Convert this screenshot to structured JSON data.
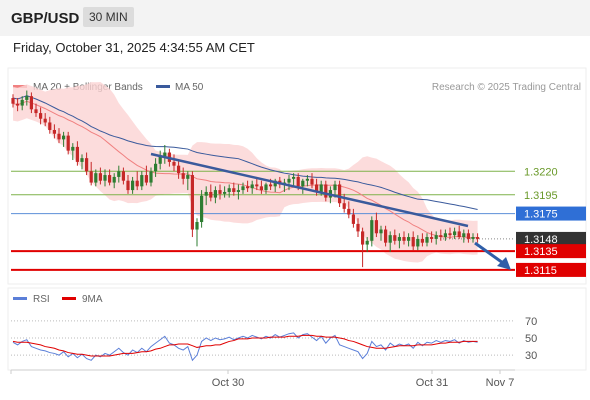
{
  "header": {
    "symbol": "GBP/USD",
    "timeframe": "30 MIN"
  },
  "datetime": "Friday, October 31, 2025 4:34:55 AM CET",
  "legend": {
    "ma20": "MA 20 + Bollinger Bands",
    "ma50": "MA 50",
    "rsi": "RSI",
    "ma9": "9MA"
  },
  "credit": "Research © 2025 Trading Central",
  "colors": {
    "ma20": "#f08080",
    "bands": "#fbd3d3",
    "ma50": "#3a5a9c",
    "trendline": "#3a5a9c",
    "support_line": "#e00000",
    "resistance_line": "#7fb24a",
    "pivot_line": "#5b8fd8",
    "candle_up": "#2e7d32",
    "candle_down": "#c62828",
    "rsi": "#5b7fd8",
    "rsi_ma": "#e00000"
  },
  "chart_data": [
    {
      "type": "candlestick",
      "title": "GBP/USD 30 MIN",
      "x_ticks": [
        "Oct 30",
        "Oct 31",
        "Nov 7"
      ],
      "y_range": [
        1.31,
        1.333
      ],
      "levels": [
        {
          "value": 1.322,
          "label": "1.3220",
          "style": "resistance"
        },
        {
          "value": 1.3195,
          "label": "1.3195",
          "style": "resistance"
        },
        {
          "value": 1.3175,
          "label": "1.3175",
          "style": "pivot"
        },
        {
          "value": 1.3148,
          "label": "1.3148",
          "style": "current"
        },
        {
          "value": 1.3135,
          "label": "1.3135",
          "style": "support"
        },
        {
          "value": 1.3115,
          "label": "1.3115",
          "style": "support"
        }
      ],
      "current_price": 1.3148,
      "candles": [
        [
          1.3298,
          1.3302,
          1.3288,
          1.3292
        ],
        [
          1.3292,
          1.3298,
          1.3284,
          1.329
        ],
        [
          1.329,
          1.33,
          1.3285,
          1.3296
        ],
        [
          1.3296,
          1.3306,
          1.329,
          1.33
        ],
        [
          1.33,
          1.3304,
          1.3282,
          1.3286
        ],
        [
          1.3286,
          1.3292,
          1.3278,
          1.3282
        ],
        [
          1.3282,
          1.3288,
          1.327,
          1.3276
        ],
        [
          1.3276,
          1.3282,
          1.3268,
          1.3272
        ],
        [
          1.3272,
          1.3278,
          1.326,
          1.3264
        ],
        [
          1.3264,
          1.327,
          1.3255,
          1.326
        ],
        [
          1.326,
          1.3266,
          1.325,
          1.3254
        ],
        [
          1.3254,
          1.3262,
          1.3246,
          1.3258
        ],
        [
          1.3258,
          1.3262,
          1.3238,
          1.3242
        ],
        [
          1.3242,
          1.325,
          1.3232,
          1.3246
        ],
        [
          1.3246,
          1.3252,
          1.3226,
          1.323
        ],
        [
          1.323,
          1.3238,
          1.3222,
          1.3234
        ],
        [
          1.3234,
          1.324,
          1.3216,
          1.322
        ],
        [
          1.322,
          1.323,
          1.3205,
          1.3208
        ],
        [
          1.3208,
          1.3222,
          1.3204,
          1.3218
        ],
        [
          1.3218,
          1.3224,
          1.3206,
          1.321
        ],
        [
          1.321,
          1.3222,
          1.3204,
          1.3216
        ],
        [
          1.3216,
          1.3222,
          1.3205,
          1.3208
        ],
        [
          1.3208,
          1.3218,
          1.3202,
          1.3214
        ],
        [
          1.3214,
          1.3226,
          1.3208,
          1.322
        ],
        [
          1.322,
          1.3224,
          1.3206,
          1.321
        ],
        [
          1.321,
          1.3216,
          1.3196,
          1.32
        ],
        [
          1.32,
          1.3214,
          1.3196,
          1.321
        ],
        [
          1.321,
          1.322,
          1.32,
          1.3204
        ],
        [
          1.3204,
          1.322,
          1.32,
          1.3216
        ],
        [
          1.3216,
          1.3226,
          1.3205,
          1.3208
        ],
        [
          1.3208,
          1.3224,
          1.3204,
          1.322
        ],
        [
          1.322,
          1.3234,
          1.3214,
          1.3228
        ],
        [
          1.3228,
          1.3242,
          1.3222,
          1.3236
        ],
        [
          1.3236,
          1.3248,
          1.3228,
          1.324
        ],
        [
          1.324,
          1.3244,
          1.3225,
          1.323
        ],
        [
          1.323,
          1.3238,
          1.322,
          1.3226
        ],
        [
          1.3226,
          1.3232,
          1.3212,
          1.3218
        ],
        [
          1.3218,
          1.3224,
          1.3206,
          1.3212
        ],
        [
          1.3212,
          1.322,
          1.32,
          1.3216
        ],
        [
          1.3216,
          1.322,
          1.315,
          1.3158
        ],
        [
          1.3158,
          1.317,
          1.314,
          1.3166
        ],
        [
          1.3166,
          1.32,
          1.316,
          1.3194
        ],
        [
          1.3194,
          1.3204,
          1.3184,
          1.3198
        ],
        [
          1.3198,
          1.3206,
          1.3188,
          1.3192
        ],
        [
          1.3192,
          1.3204,
          1.3186,
          1.32
        ],
        [
          1.32,
          1.3206,
          1.319,
          1.3196
        ],
        [
          1.3196,
          1.3204,
          1.3192,
          1.3198
        ],
        [
          1.3198,
          1.3206,
          1.3192,
          1.3202
        ],
        [
          1.3202,
          1.3208,
          1.3194,
          1.3198
        ],
        [
          1.3198,
          1.3206,
          1.319,
          1.32
        ],
        [
          1.32,
          1.3208,
          1.3196,
          1.3204
        ],
        [
          1.3204,
          1.321,
          1.3198,
          1.3202
        ],
        [
          1.3202,
          1.321,
          1.3196,
          1.3206
        ],
        [
          1.3206,
          1.3212,
          1.32,
          1.3204
        ],
        [
          1.3204,
          1.321,
          1.3196,
          1.32
        ],
        [
          1.32,
          1.3208,
          1.3196,
          1.3206
        ],
        [
          1.3206,
          1.3212,
          1.32,
          1.3204
        ],
        [
          1.3204,
          1.3212,
          1.3198,
          1.321
        ],
        [
          1.321,
          1.3214,
          1.3202,
          1.3206
        ],
        [
          1.3206,
          1.3212,
          1.3198,
          1.3208
        ],
        [
          1.3208,
          1.3216,
          1.32,
          1.3212
        ],
        [
          1.3212,
          1.3218,
          1.3204,
          1.3214
        ],
        [
          1.3214,
          1.3218,
          1.32,
          1.3204
        ],
        [
          1.3204,
          1.3212,
          1.3196,
          1.321
        ],
        [
          1.321,
          1.3216,
          1.3204,
          1.3212
        ],
        [
          1.3212,
          1.3218,
          1.3202,
          1.3206
        ],
        [
          1.3206,
          1.3212,
          1.3194,
          1.3198
        ],
        [
          1.3198,
          1.321,
          1.3194,
          1.3206
        ],
        [
          1.3206,
          1.321,
          1.3188,
          1.3192
        ],
        [
          1.3192,
          1.3204,
          1.3186,
          1.32
        ],
        [
          1.32,
          1.321,
          1.3192,
          1.3206
        ],
        [
          1.3206,
          1.321,
          1.3182,
          1.3186
        ],
        [
          1.3186,
          1.3196,
          1.3176,
          1.318
        ],
        [
          1.318,
          1.3188,
          1.317,
          1.3174
        ],
        [
          1.3174,
          1.318,
          1.316,
          1.3164
        ],
        [
          1.3164,
          1.317,
          1.315,
          1.3156
        ],
        [
          1.3156,
          1.316,
          1.3118,
          1.3142
        ],
        [
          1.3142,
          1.315,
          1.3134,
          1.3146
        ],
        [
          1.3146,
          1.3172,
          1.314,
          1.3168
        ],
        [
          1.3168,
          1.3176,
          1.315,
          1.3154
        ],
        [
          1.3154,
          1.3162,
          1.3146,
          1.3158
        ],
        [
          1.3158,
          1.3162,
          1.314,
          1.3144
        ],
        [
          1.3144,
          1.3156,
          1.3134,
          1.3152
        ],
        [
          1.3152,
          1.3158,
          1.3142,
          1.3146
        ],
        [
          1.3146,
          1.3154,
          1.3138,
          1.315
        ],
        [
          1.315,
          1.3156,
          1.3142,
          1.3146
        ],
        [
          1.3146,
          1.3154,
          1.314,
          1.315
        ],
        [
          1.315,
          1.3156,
          1.3136,
          1.314
        ],
        [
          1.314,
          1.3152,
          1.3136,
          1.3148
        ],
        [
          1.3148,
          1.3154,
          1.314,
          1.3144
        ],
        [
          1.3144,
          1.3154,
          1.314,
          1.315
        ],
        [
          1.315,
          1.3156,
          1.3144,
          1.3148
        ],
        [
          1.3148,
          1.3156,
          1.3142,
          1.3152
        ],
        [
          1.3152,
          1.3158,
          1.3146,
          1.315
        ],
        [
          1.315,
          1.3158,
          1.3146,
          1.3154
        ],
        [
          1.3154,
          1.316,
          1.3148,
          1.3152
        ],
        [
          1.3152,
          1.316,
          1.3148,
          1.3156
        ],
        [
          1.3156,
          1.3162,
          1.3148,
          1.315
        ],
        [
          1.315,
          1.3158,
          1.3144,
          1.3154
        ],
        [
          1.3154,
          1.3158,
          1.3144,
          1.3148
        ],
        [
          1.3148,
          1.3154,
          1.3144,
          1.315
        ],
        [
          1.315,
          1.3154,
          1.3144,
          1.3148
        ]
      ]
    },
    {
      "type": "line",
      "title": "RSI",
      "y_ticks": [
        70,
        50,
        30
      ],
      "y_range": [
        15,
        85
      ],
      "series": [
        {
          "name": "RSI",
          "values": [
            45,
            42,
            46,
            48,
            40,
            38,
            36,
            35,
            33,
            32,
            30,
            34,
            28,
            32,
            27,
            31,
            26,
            24,
            30,
            28,
            32,
            30,
            34,
            38,
            33,
            30,
            36,
            33,
            38,
            34,
            40,
            44,
            48,
            52,
            44,
            42,
            38,
            36,
            40,
            24,
            30,
            46,
            50,
            47,
            50,
            48,
            49,
            51,
            48,
            50,
            52,
            50,
            53,
            51,
            49,
            52,
            50,
            54,
            51,
            53,
            55,
            56,
            50,
            54,
            55,
            51,
            47,
            52,
            44,
            50,
            53,
            42,
            40,
            38,
            36,
            34,
            26,
            32,
            46,
            40,
            42,
            36,
            44,
            40,
            43,
            41,
            43,
            38,
            45,
            41,
            45,
            44,
            47,
            45,
            47,
            46,
            48,
            44,
            47,
            45,
            46,
            45
          ]
        },
        {
          "name": "9MA",
          "values": [
            46,
            45,
            45,
            45,
            44,
            43,
            42,
            40,
            39,
            38,
            36,
            35,
            33,
            32,
            31,
            31,
            30,
            29,
            29,
            29,
            29,
            29,
            30,
            31,
            32,
            32,
            32,
            33,
            34,
            34,
            35,
            37,
            38,
            40,
            42,
            42,
            43,
            43,
            43,
            41,
            39,
            40,
            41,
            41,
            42,
            42,
            44,
            46,
            47,
            49,
            49,
            49,
            50,
            50,
            50,
            50,
            51,
            51,
            51,
            51,
            52,
            52,
            52,
            53,
            53,
            53,
            52,
            52,
            51,
            51,
            51,
            50,
            49,
            47,
            46,
            44,
            42,
            40,
            39,
            38,
            38,
            38,
            39,
            40,
            41,
            41,
            41,
            41,
            42,
            42,
            42,
            42,
            43,
            44,
            44,
            45,
            45,
            45,
            46,
            46,
            46,
            46
          ]
        }
      ]
    }
  ]
}
